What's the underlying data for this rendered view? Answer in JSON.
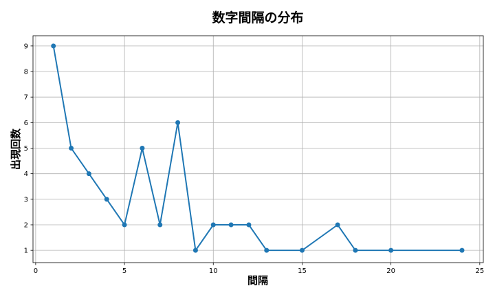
{
  "chart_data": {
    "type": "line",
    "title": "数字間隔の分布",
    "xlabel": "間隔",
    "ylabel": "出現回数",
    "x": [
      1,
      2,
      3,
      4,
      5,
      6,
      7,
      8,
      9,
      10,
      11,
      12,
      13,
      15,
      17,
      18,
      20,
      24
    ],
    "y": [
      9,
      5,
      4,
      3,
      2,
      5,
      2,
      6,
      1,
      2,
      2,
      2,
      1,
      1,
      2,
      1,
      1,
      1
    ],
    "xlim": [
      -0.15,
      25.2
    ],
    "ylim": [
      0.52,
      9.4
    ],
    "xticks": [
      0,
      5,
      10,
      15,
      20,
      25
    ],
    "yticks": [
      1,
      2,
      3,
      4,
      5,
      6,
      7,
      8,
      9
    ],
    "grid": true,
    "marker": "circle",
    "color": "#1f77b4"
  }
}
